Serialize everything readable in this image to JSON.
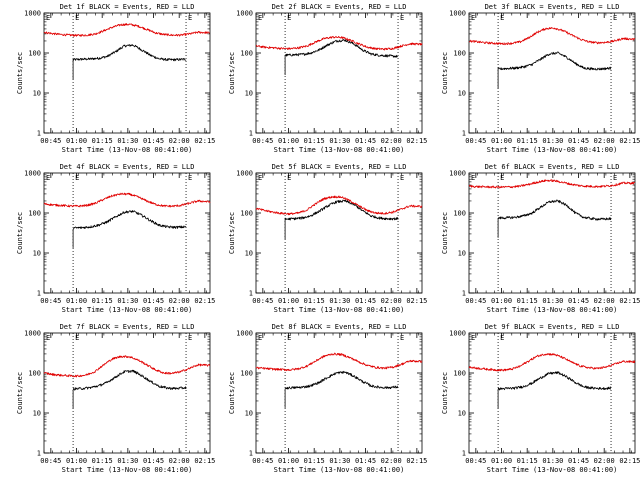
{
  "colors": {
    "events": "#000000",
    "lld": "#e00000",
    "axis": "#000000",
    "background": "#ffffff"
  },
  "shared": {
    "xlabel": "Start Time (13-Nov-08 00:41:00)",
    "ylabel": "Counts/sec",
    "x_tick_labels": [
      "00:45",
      "01:00",
      "01:15",
      "01:30",
      "01:45",
      "02:00",
      "02:15"
    ],
    "x_tick_values_min": [
      4,
      19,
      34,
      49,
      64,
      79,
      94
    ],
    "xlim_min": [
      0,
      97
    ],
    "y_tick_labels": [
      "1",
      "10",
      "100",
      "1000"
    ],
    "ylim": [
      1,
      1000
    ],
    "yscale": "log",
    "corner_marker": "E",
    "vertical_lines_min": [
      17,
      83
    ]
  },
  "chart_data": [
    {
      "type": "line",
      "title": "Det 1f BLACK = Events, RED = LLD",
      "xlabel": "Start Time (13-Nov-08 00:41:00)",
      "ylabel": "Counts/sec",
      "ylim": [
        1,
        1000
      ],
      "series": [
        {
          "name": "Events",
          "color": "#000000",
          "x": [
            17,
            22,
            27,
            32,
            37,
            42,
            47,
            52,
            57,
            62,
            67,
            72,
            77,
            83
          ],
          "values": [
            68,
            70,
            71,
            74,
            82,
            108,
            150,
            158,
            120,
            88,
            72,
            68,
            68,
            70
          ]
        },
        {
          "name": "LLD",
          "color": "#e00000",
          "x": [
            0,
            5,
            10,
            15,
            20,
            25,
            30,
            35,
            40,
            45,
            50,
            55,
            60,
            65,
            70,
            75,
            80,
            85,
            90,
            97
          ],
          "values": [
            330,
            305,
            290,
            280,
            275,
            280,
            300,
            360,
            440,
            510,
            520,
            470,
            390,
            320,
            290,
            280,
            280,
            300,
            330,
            320
          ]
        }
      ]
    },
    {
      "type": "line",
      "title": "Det 2f BLACK = Events, RED = LLD",
      "xlabel": "Start Time (13-Nov-08 00:41:00)",
      "ylabel": "Counts/sec",
      "ylim": [
        1,
        1000
      ],
      "series": [
        {
          "name": "Events",
          "color": "#000000",
          "x": [
            17,
            22,
            27,
            32,
            37,
            42,
            47,
            52,
            57,
            62,
            67,
            72,
            77,
            83
          ],
          "values": [
            88,
            90,
            92,
            100,
            120,
            160,
            200,
            210,
            170,
            120,
            95,
            88,
            85,
            82
          ]
        },
        {
          "name": "LLD",
          "color": "#e00000",
          "x": [
            0,
            5,
            10,
            15,
            20,
            25,
            30,
            35,
            40,
            45,
            50,
            55,
            60,
            65,
            70,
            75,
            80,
            85,
            90,
            97
          ],
          "values": [
            150,
            140,
            135,
            130,
            128,
            135,
            150,
            190,
            230,
            250,
            245,
            210,
            170,
            140,
            128,
            125,
            130,
            150,
            170,
            165
          ]
        }
      ]
    },
    {
      "type": "line",
      "title": "Det 3f BLACK = Events, RED = LLD",
      "xlabel": "Start Time (13-Nov-08 00:41:00)",
      "ylabel": "Counts/sec",
      "ylim": [
        1,
        1000
      ],
      "series": [
        {
          "name": "Events",
          "color": "#000000",
          "x": [
            17,
            22,
            27,
            32,
            37,
            42,
            47,
            52,
            57,
            62,
            67,
            72,
            77,
            83
          ],
          "values": [
            40,
            41,
            42,
            45,
            52,
            70,
            95,
            100,
            78,
            55,
            42,
            40,
            40,
            42
          ]
        },
        {
          "name": "LLD",
          "color": "#e00000",
          "x": [
            0,
            5,
            10,
            15,
            20,
            25,
            30,
            35,
            40,
            45,
            50,
            55,
            60,
            65,
            70,
            75,
            80,
            85,
            90,
            97
          ],
          "values": [
            200,
            190,
            180,
            175,
            170,
            175,
            190,
            240,
            330,
            410,
            420,
            360,
            280,
            220,
            190,
            180,
            185,
            200,
            230,
            220
          ]
        }
      ]
    },
    {
      "type": "line",
      "title": "Det 4f BLACK = Events, RED = LLD",
      "xlabel": "Start Time (13-Nov-08 00:41:00)",
      "ylabel": "Counts/sec",
      "ylim": [
        1,
        1000
      ],
      "series": [
        {
          "name": "Events",
          "color": "#000000",
          "x": [
            17,
            22,
            27,
            32,
            37,
            42,
            47,
            52,
            57,
            62,
            67,
            72,
            77,
            83
          ],
          "values": [
            42,
            43,
            45,
            50,
            60,
            80,
            105,
            110,
            88,
            65,
            50,
            45,
            44,
            45
          ]
        },
        {
          "name": "LLD",
          "color": "#e00000",
          "x": [
            0,
            5,
            10,
            15,
            20,
            25,
            30,
            35,
            40,
            45,
            50,
            55,
            60,
            65,
            70,
            75,
            80,
            85,
            90,
            97
          ],
          "values": [
            170,
            160,
            155,
            150,
            148,
            155,
            175,
            220,
            270,
            300,
            295,
            250,
            200,
            165,
            150,
            148,
            155,
            175,
            200,
            190
          ]
        }
      ]
    },
    {
      "type": "line",
      "title": "Det 5f BLACK = Events, RED = LLD",
      "xlabel": "Start Time (13-Nov-08 00:41:00)",
      "ylabel": "Counts/sec",
      "ylim": [
        1,
        1000
      ],
      "series": [
        {
          "name": "Events",
          "color": "#000000",
          "x": [
            17,
            22,
            27,
            32,
            37,
            42,
            47,
            52,
            57,
            62,
            67,
            72,
            77,
            83
          ],
          "values": [
            70,
            72,
            75,
            85,
            110,
            150,
            190,
            200,
            165,
            115,
            85,
            75,
            72,
            72
          ]
        },
        {
          "name": "LLD",
          "color": "#e00000",
          "x": [
            0,
            5,
            10,
            15,
            20,
            25,
            30,
            35,
            40,
            45,
            50,
            55,
            60,
            65,
            70,
            75,
            80,
            85,
            90,
            97
          ],
          "values": [
            130,
            115,
            105,
            98,
            95,
            100,
            120,
            170,
            230,
            255,
            250,
            200,
            150,
            115,
            100,
            98,
            105,
            125,
            150,
            145
          ]
        }
      ]
    },
    {
      "type": "line",
      "title": "Det 6f BLACK = Events, RED = LLD",
      "xlabel": "Start Time (13-Nov-08 00:41:00)",
      "ylabel": "Counts/sec",
      "ylim": [
        1,
        1000
      ],
      "series": [
        {
          "name": "Events",
          "color": "#000000",
          "x": [
            17,
            22,
            27,
            32,
            37,
            42,
            47,
            52,
            57,
            62,
            67,
            72,
            77,
            83
          ],
          "values": [
            75,
            76,
            78,
            85,
            100,
            140,
            190,
            200,
            155,
            100,
            78,
            72,
            70,
            72
          ]
        },
        {
          "name": "LLD",
          "color": "#e00000",
          "x": [
            0,
            5,
            10,
            15,
            20,
            25,
            30,
            35,
            40,
            45,
            50,
            55,
            60,
            65,
            70,
            75,
            80,
            85,
            90,
            97
          ],
          "values": [
            470,
            455,
            450,
            445,
            445,
            450,
            470,
            520,
            590,
            650,
            640,
            580,
            520,
            480,
            465,
            460,
            470,
            500,
            560,
            560
          ]
        }
      ]
    },
    {
      "type": "line",
      "title": "Det 7f BLACK = Events, RED = LLD",
      "xlabel": "Start Time (13-Nov-08 00:41:00)",
      "ylabel": "Counts/sec",
      "ylim": [
        1,
        1000
      ],
      "series": [
        {
          "name": "Events",
          "color": "#000000",
          "x": [
            17,
            22,
            27,
            32,
            37,
            42,
            47,
            52,
            57,
            62,
            67,
            72,
            77,
            83
          ],
          "values": [
            40,
            41,
            43,
            48,
            58,
            80,
            108,
            112,
            86,
            62,
            47,
            42,
            41,
            43
          ]
        },
        {
          "name": "LLD",
          "color": "#e00000",
          "x": [
            0,
            5,
            10,
            15,
            20,
            25,
            30,
            35,
            40,
            45,
            50,
            55,
            60,
            65,
            70,
            75,
            80,
            85,
            90,
            97
          ],
          "values": [
            100,
            92,
            88,
            85,
            84,
            90,
            110,
            160,
            225,
            260,
            255,
            210,
            160,
            120,
            100,
            98,
            108,
            130,
            160,
            155
          ]
        }
      ]
    },
    {
      "type": "line",
      "title": "Det 8f BLACK = Events, RED = LLD",
      "xlabel": "Start Time (13-Nov-08 00:41:00)",
      "ylabel": "Counts/sec",
      "ylim": [
        1,
        1000
      ],
      "series": [
        {
          "name": "Events",
          "color": "#000000",
          "x": [
            17,
            22,
            27,
            32,
            37,
            42,
            47,
            52,
            57,
            62,
            67,
            72,
            77,
            83
          ],
          "values": [
            42,
            43,
            44,
            48,
            58,
            78,
            100,
            105,
            84,
            62,
            48,
            44,
            43,
            45
          ]
        },
        {
          "name": "LLD",
          "color": "#e00000",
          "x": [
            0,
            5,
            10,
            15,
            20,
            25,
            30,
            35,
            40,
            45,
            50,
            55,
            60,
            65,
            70,
            75,
            80,
            85,
            90,
            97
          ],
          "values": [
            135,
            130,
            125,
            122,
            120,
            128,
            150,
            200,
            265,
            300,
            290,
            240,
            190,
            155,
            138,
            132,
            140,
            165,
            200,
            195
          ]
        }
      ]
    },
    {
      "type": "line",
      "title": "Det 9f BLACK = Events, RED = LLD",
      "xlabel": "Start Time (13-Nov-08 00:41:00)",
      "ylabel": "Counts/sec",
      "ylim": [
        1,
        1000
      ],
      "series": [
        {
          "name": "Events",
          "color": "#000000",
          "x": [
            17,
            22,
            27,
            32,
            37,
            42,
            47,
            52,
            57,
            62,
            67,
            72,
            77,
            83
          ],
          "values": [
            40,
            41,
            42,
            46,
            56,
            76,
            98,
            102,
            80,
            58,
            45,
            42,
            41,
            42
          ]
        },
        {
          "name": "LLD",
          "color": "#e00000",
          "x": [
            0,
            5,
            10,
            15,
            20,
            25,
            30,
            35,
            40,
            45,
            50,
            55,
            60,
            65,
            70,
            75,
            80,
            85,
            90,
            97
          ],
          "values": [
            140,
            132,
            125,
            120,
            118,
            125,
            148,
            200,
            265,
            300,
            290,
            240,
            185,
            150,
            135,
            130,
            140,
            165,
            195,
            190
          ]
        }
      ]
    }
  ]
}
